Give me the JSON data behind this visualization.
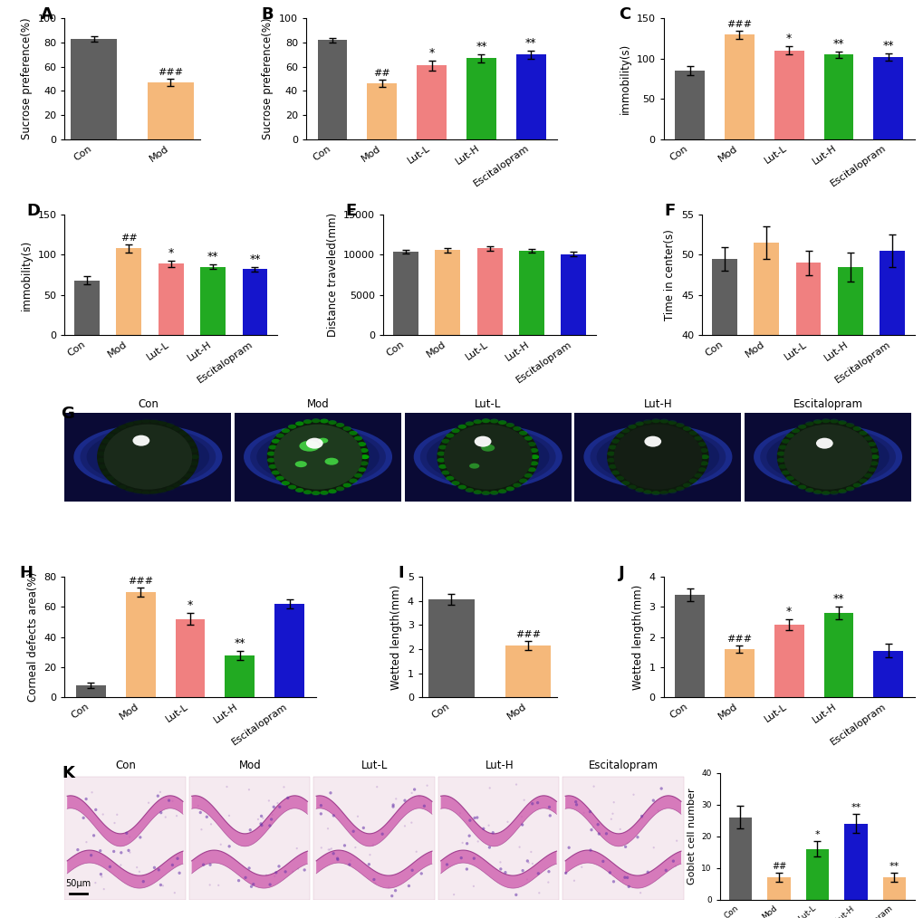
{
  "colors": {
    "gray": "#606060",
    "orange": "#F5B87A",
    "salmon": "#F08080",
    "green": "#22AA22",
    "blue": "#1515CC"
  },
  "panel_A": {
    "categories": [
      "Con",
      "Mod"
    ],
    "values": [
      83,
      47
    ],
    "errors": [
      2.5,
      3.0
    ],
    "bar_colors": [
      "#606060",
      "#F5B87A"
    ],
    "ylabel": "Sucrose preference(%)",
    "ylim": [
      0,
      100
    ],
    "yticks": [
      0,
      20,
      40,
      60,
      80,
      100
    ],
    "annotations": [
      {
        "bar": 1,
        "text": "###",
        "fontsize": 8
      }
    ]
  },
  "panel_B": {
    "categories": [
      "Con",
      "Mod",
      "Lut-L",
      "Lut-H",
      "Escitalopram"
    ],
    "values": [
      82,
      46,
      61,
      67,
      70
    ],
    "errors": [
      2.0,
      3.0,
      4.0,
      3.5,
      3.5
    ],
    "bar_colors": [
      "#606060",
      "#F5B87A",
      "#F08080",
      "#22AA22",
      "#1515CC"
    ],
    "ylabel": "Sucrose preference(%)",
    "ylim": [
      0,
      100
    ],
    "yticks": [
      0,
      20,
      40,
      60,
      80,
      100
    ],
    "annotations": [
      {
        "bar": 1,
        "text": "##",
        "fontsize": 8
      },
      {
        "bar": 2,
        "text": "*",
        "fontsize": 9
      },
      {
        "bar": 3,
        "text": "**",
        "fontsize": 9
      },
      {
        "bar": 4,
        "text": "**",
        "fontsize": 9
      }
    ]
  },
  "panel_C": {
    "categories": [
      "Con",
      "Mod",
      "Lut-L",
      "Lut-H",
      "Escitalopram"
    ],
    "values": [
      85,
      130,
      110,
      105,
      102
    ],
    "errors": [
      6,
      5,
      5,
      4,
      4
    ],
    "bar_colors": [
      "#606060",
      "#F5B87A",
      "#F08080",
      "#22AA22",
      "#1515CC"
    ],
    "ylabel": "immobility(s)",
    "ylim": [
      0,
      150
    ],
    "yticks": [
      0,
      50,
      100,
      150
    ],
    "annotations": [
      {
        "bar": 1,
        "text": "###",
        "fontsize": 8
      },
      {
        "bar": 2,
        "text": "*",
        "fontsize": 9
      },
      {
        "bar": 3,
        "text": "**",
        "fontsize": 9
      },
      {
        "bar": 4,
        "text": "**",
        "fontsize": 9
      }
    ]
  },
  "panel_D": {
    "categories": [
      "Con",
      "Mod",
      "Lut-L",
      "Lut-H",
      "Escitalopram"
    ],
    "values": [
      68,
      108,
      89,
      85,
      82
    ],
    "errors": [
      5,
      5,
      4,
      3,
      3
    ],
    "bar_colors": [
      "#606060",
      "#F5B87A",
      "#F08080",
      "#22AA22",
      "#1515CC"
    ],
    "ylabel": "immobility(s)",
    "ylim": [
      0,
      150
    ],
    "yticks": [
      0,
      50,
      100,
      150
    ],
    "annotations": [
      {
        "bar": 1,
        "text": "##",
        "fontsize": 8
      },
      {
        "bar": 2,
        "text": "*",
        "fontsize": 9
      },
      {
        "bar": 3,
        "text": "**",
        "fontsize": 9
      },
      {
        "bar": 4,
        "text": "**",
        "fontsize": 9
      }
    ]
  },
  "panel_E": {
    "categories": [
      "Con",
      "Mod",
      "Lut-L",
      "Lut-H",
      "Escitalopram"
    ],
    "values": [
      10400,
      10600,
      10800,
      10500,
      10100
    ],
    "errors": [
      250,
      280,
      300,
      270,
      240
    ],
    "bar_colors": [
      "#606060",
      "#F5B87A",
      "#F08080",
      "#22AA22",
      "#1515CC"
    ],
    "ylabel": "Distance traveled(mm)",
    "ylim": [
      0,
      15000
    ],
    "yticks": [
      0,
      5000,
      10000,
      15000
    ],
    "annotations": []
  },
  "panel_F": {
    "categories": [
      "Con",
      "Mod",
      "Lut-L",
      "Lut-H",
      "Escitalopram"
    ],
    "values": [
      49.5,
      51.5,
      49.0,
      48.5,
      50.5
    ],
    "errors": [
      1.5,
      2.0,
      1.5,
      1.8,
      2.0
    ],
    "bar_colors": [
      "#606060",
      "#F5B87A",
      "#F08080",
      "#22AA22",
      "#1515CC"
    ],
    "ylabel": "Time in center(s)",
    "ylim": [
      40,
      55
    ],
    "yticks": [
      40,
      45,
      50,
      55
    ],
    "annotations": []
  },
  "panel_H": {
    "categories": [
      "Con",
      "Mod",
      "Lut-L",
      "Lut-H",
      "Escitalopram"
    ],
    "values": [
      8,
      70,
      52,
      28,
      62
    ],
    "errors": [
      2,
      3,
      4,
      3,
      3
    ],
    "bar_colors": [
      "#606060",
      "#F5B87A",
      "#F08080",
      "#22AA22",
      "#1515CC"
    ],
    "ylabel": "Corneal defects area(%)",
    "ylim": [
      0,
      80
    ],
    "yticks": [
      0,
      20,
      40,
      60,
      80
    ],
    "annotations": [
      {
        "bar": 1,
        "text": "###",
        "fontsize": 8
      },
      {
        "bar": 2,
        "text": "*",
        "fontsize": 9
      },
      {
        "bar": 3,
        "text": "**",
        "fontsize": 9
      }
    ]
  },
  "panel_I": {
    "categories": [
      "Con",
      "Mod"
    ],
    "values": [
      4.05,
      2.15
    ],
    "errors": [
      0.22,
      0.18
    ],
    "bar_colors": [
      "#606060",
      "#F5B87A"
    ],
    "ylabel": "Wetted length(mm)",
    "ylim": [
      0,
      5
    ],
    "yticks": [
      0,
      1,
      2,
      3,
      4,
      5
    ],
    "annotations": [
      {
        "bar": 1,
        "text": "###",
        "fontsize": 8
      }
    ]
  },
  "panel_J": {
    "categories": [
      "Con",
      "Mod",
      "Lut-L",
      "Lut-H",
      "Escitalopram"
    ],
    "values": [
      3.4,
      1.6,
      2.4,
      2.8,
      1.55
    ],
    "errors": [
      0.2,
      0.12,
      0.18,
      0.2,
      0.22
    ],
    "bar_colors": [
      "#606060",
      "#F5B87A",
      "#F08080",
      "#22AA22",
      "#1515CC"
    ],
    "ylabel": "Wetted length(mm)",
    "ylim": [
      0,
      4
    ],
    "yticks": [
      0,
      1,
      2,
      3,
      4
    ],
    "annotations": [
      {
        "bar": 1,
        "text": "###",
        "fontsize": 8
      },
      {
        "bar": 2,
        "text": "*",
        "fontsize": 9
      },
      {
        "bar": 3,
        "text": "**",
        "fontsize": 9
      }
    ]
  },
  "panel_K_bar": {
    "categories": [
      "Con",
      "Mod",
      "Lut-L",
      "Lut-H",
      "Escitalopram"
    ],
    "values": [
      26,
      7,
      16,
      24,
      7
    ],
    "errors": [
      3.5,
      1.5,
      2.5,
      3.0,
      1.5
    ],
    "bar_colors": [
      "#606060",
      "#F5B87A",
      "#22AA22",
      "#1515CC",
      "#F5B87A"
    ],
    "ylabel": "Goblet cell number",
    "ylim": [
      0,
      40
    ],
    "yticks": [
      0,
      10,
      20,
      30,
      40
    ],
    "annotations": [
      {
        "bar": 1,
        "text": "##",
        "fontsize": 7
      },
      {
        "bar": 2,
        "text": "*",
        "fontsize": 8
      },
      {
        "bar": 3,
        "text": "**",
        "fontsize": 8
      },
      {
        "bar": 4,
        "text": "**",
        "fontsize": 8
      }
    ]
  },
  "label_fontsize": 8.5,
  "tick_fontsize": 8,
  "panel_label_fontsize": 13
}
